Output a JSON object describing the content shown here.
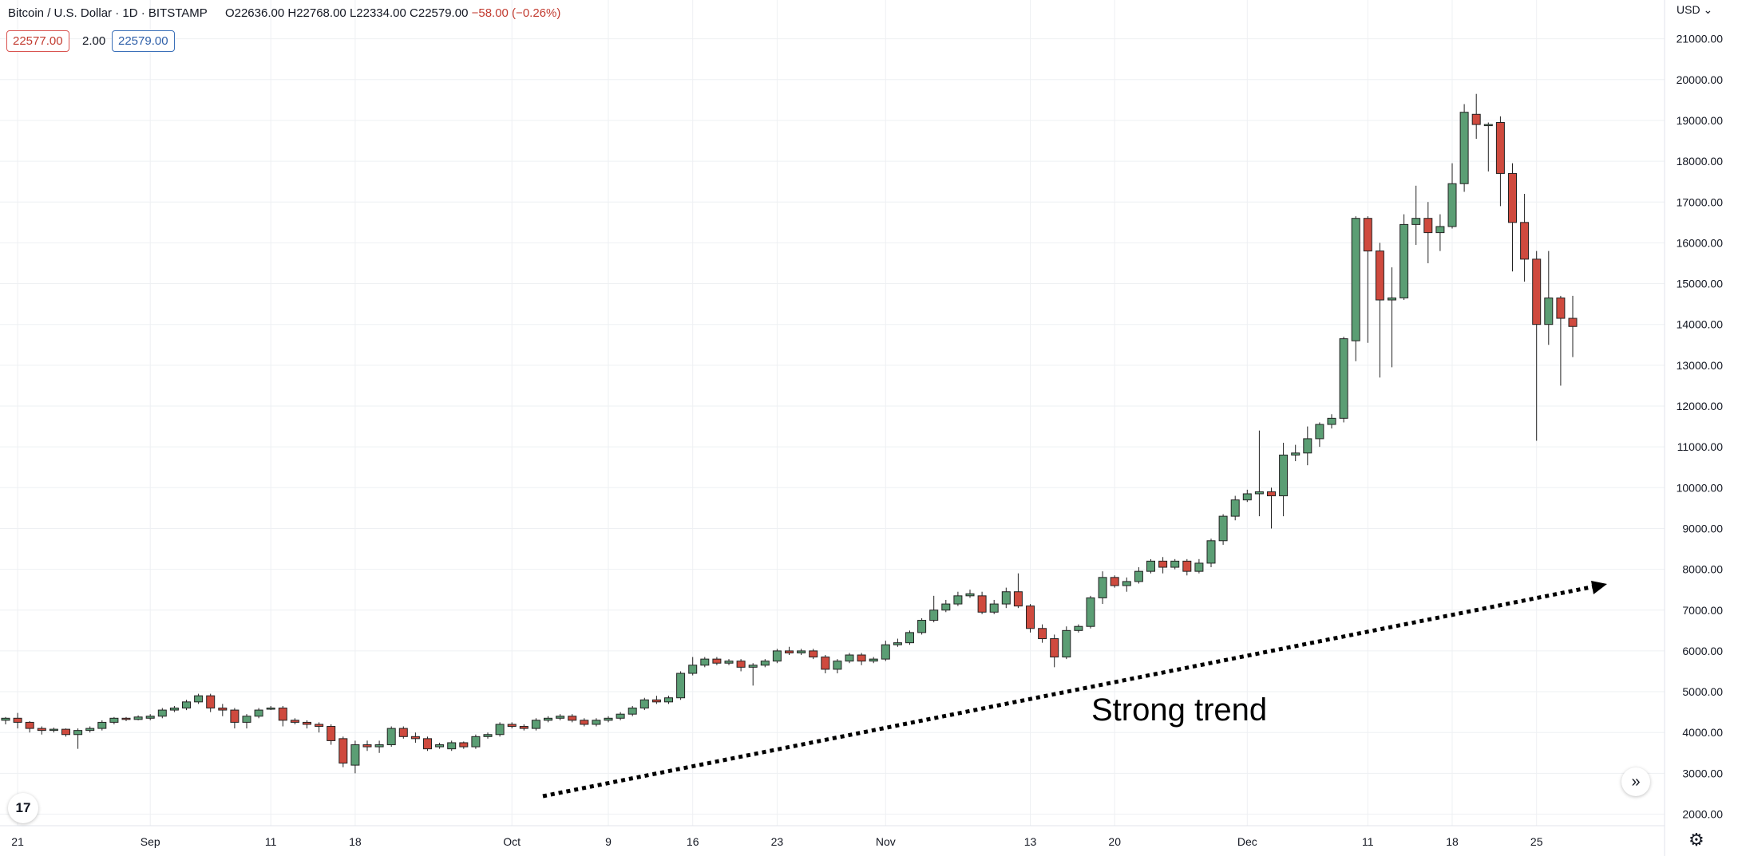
{
  "legend": {
    "symbol": "Bitcoin / U.S. Dollar · 1D · BITSTAMP",
    "open": "O22636.00",
    "high": "H22768.00",
    "low": "L22334.00",
    "close": "C22579.00",
    "change": "−58.00 (−0.26%)"
  },
  "quote": {
    "bid": "22577.00",
    "spread": "2.00",
    "ask": "22579.00"
  },
  "currency_label": "USD",
  "logo_text": "17",
  "annotation": "Strong trend",
  "colors": {
    "up": "#5b9e74",
    "down": "#cf4a3e",
    "grid": "#eef0f3",
    "text": "#131722"
  },
  "chart_data": {
    "type": "candlestick",
    "title": "Bitcoin / U.S. Dollar · 1D · BITSTAMP",
    "ylabel": "USD",
    "ylim": [
      1400,
      21300
    ],
    "y_ticks": [
      "2000.00",
      "3000.00",
      "4000.00",
      "5000.00",
      "6000.00",
      "7000.00",
      "8000.00",
      "9000.00",
      "10000.00",
      "11000.00",
      "12000.00",
      "13000.00",
      "14000.00",
      "15000.00",
      "16000.00",
      "17000.00",
      "18000.00",
      "19000.00",
      "20000.00",
      "21000.00"
    ],
    "x_ticks": [
      {
        "label": "21",
        "day": 1
      },
      {
        "label": "Sep",
        "day": 12
      },
      {
        "label": "11",
        "day": 22
      },
      {
        "label": "18",
        "day": 29
      },
      {
        "label": "Oct",
        "day": 42
      },
      {
        "label": "9",
        "day": 50
      },
      {
        "label": "16",
        "day": 57
      },
      {
        "label": "23",
        "day": 64
      },
      {
        "label": "Nov",
        "day": 73
      },
      {
        "label": "13",
        "day": 85
      },
      {
        "label": "20",
        "day": 92
      },
      {
        "label": "Dec",
        "day": 103
      },
      {
        "label": "11",
        "day": 113
      },
      {
        "label": "18",
        "day": 120
      },
      {
        "label": "25",
        "day": 127
      }
    ],
    "candles": [
      [
        4300,
        4350,
        4200,
        4380
      ],
      [
        4350,
        4250,
        4100,
        4480
      ],
      [
        4250,
        4100,
        4000,
        4280
      ],
      [
        4100,
        4050,
        3950,
        4150
      ],
      [
        4050,
        4080,
        4000,
        4120
      ],
      [
        4080,
        3950,
        3900,
        4100
      ],
      [
        3950,
        4050,
        3600,
        4100
      ],
      [
        4050,
        4100,
        4000,
        4150
      ],
      [
        4100,
        4250,
        4050,
        4300
      ],
      [
        4250,
        4350,
        4200,
        4380
      ],
      [
        4350,
        4320,
        4280,
        4380
      ],
      [
        4320,
        4380,
        4300,
        4420
      ],
      [
        4350,
        4400,
        4300,
        4450
      ],
      [
        4400,
        4550,
        4350,
        4600
      ],
      [
        4550,
        4600,
        4500,
        4650
      ],
      [
        4600,
        4750,
        4550,
        4800
      ],
      [
        4750,
        4900,
        4700,
        4950
      ],
      [
        4900,
        4600,
        4500,
        4950
      ],
      [
        4600,
        4550,
        4400,
        4700
      ],
      [
        4550,
        4250,
        4100,
        4600
      ],
      [
        4250,
        4400,
        4100,
        4450
      ],
      [
        4400,
        4550,
        4350,
        4600
      ],
      [
        4580,
        4600,
        4550,
        4650
      ],
      [
        4600,
        4300,
        4150,
        4650
      ],
      [
        4300,
        4250,
        4200,
        4350
      ],
      [
        4250,
        4200,
        4100,
        4300
      ],
      [
        4200,
        4150,
        4000,
        4250
      ],
      [
        4150,
        3800,
        3700,
        4200
      ],
      [
        3850,
        3250,
        3150,
        3900
      ],
      [
        3200,
        3700,
        3000,
        3800
      ],
      [
        3700,
        3650,
        3550,
        3800
      ],
      [
        3650,
        3700,
        3500,
        3800
      ],
      [
        3700,
        4100,
        3650,
        4150
      ],
      [
        4100,
        3900,
        3850,
        4150
      ],
      [
        3900,
        3850,
        3750,
        4000
      ],
      [
        3850,
        3600,
        3550,
        3900
      ],
      [
        3650,
        3700,
        3600,
        3750
      ],
      [
        3600,
        3750,
        3550,
        3800
      ],
      [
        3750,
        3650,
        3600,
        3780
      ],
      [
        3650,
        3900,
        3600,
        3950
      ],
      [
        3900,
        3950,
        3850,
        4000
      ],
      [
        3950,
        4200,
        3900,
        4250
      ],
      [
        4200,
        4150,
        4100,
        4250
      ],
      [
        4150,
        4100,
        4050,
        4200
      ],
      [
        4100,
        4300,
        4050,
        4350
      ],
      [
        4300,
        4350,
        4250,
        4400
      ],
      [
        4350,
        4400,
        4300,
        4450
      ],
      [
        4400,
        4300,
        4250,
        4450
      ],
      [
        4300,
        4200,
        4150,
        4350
      ],
      [
        4200,
        4300,
        4150,
        4350
      ],
      [
        4300,
        4350,
        4250,
        4400
      ],
      [
        4350,
        4450,
        4300,
        4500
      ],
      [
        4450,
        4600,
        4400,
        4650
      ],
      [
        4600,
        4800,
        4550,
        4850
      ],
      [
        4800,
        4750,
        4700,
        4900
      ],
      [
        4750,
        4850,
        4700,
        4900
      ],
      [
        4850,
        5450,
        4800,
        5500
      ],
      [
        5450,
        5650,
        5400,
        5850
      ],
      [
        5650,
        5800,
        5600,
        5850
      ],
      [
        5800,
        5700,
        5650,
        5850
      ],
      [
        5700,
        5750,
        5650,
        5800
      ],
      [
        5750,
        5600,
        5500,
        5800
      ],
      [
        5600,
        5650,
        5150,
        5700
      ],
      [
        5650,
        5750,
        5600,
        5800
      ],
      [
        5750,
        6000,
        5700,
        6050
      ],
      [
        6000,
        5950,
        5900,
        6100
      ],
      [
        5950,
        6000,
        5900,
        6050
      ],
      [
        6000,
        5850,
        5800,
        6050
      ],
      [
        5850,
        5550,
        5450,
        5900
      ],
      [
        5550,
        5750,
        5450,
        5800
      ],
      [
        5750,
        5900,
        5700,
        5950
      ],
      [
        5900,
        5750,
        5650,
        5950
      ],
      [
        5750,
        5800,
        5700,
        5850
      ],
      [
        5800,
        6150,
        5750,
        6250
      ],
      [
        6150,
        6200,
        6100,
        6300
      ],
      [
        6200,
        6450,
        6150,
        6500
      ],
      [
        6450,
        6750,
        6400,
        6800
      ],
      [
        6750,
        7000,
        6700,
        7350
      ],
      [
        7000,
        7150,
        6950,
        7250
      ],
      [
        7150,
        7350,
        7100,
        7450
      ],
      [
        7350,
        7400,
        7300,
        7500
      ],
      [
        7350,
        6950,
        6900,
        7450
      ],
      [
        6950,
        7150,
        6900,
        7250
      ],
      [
        7150,
        7450,
        7050,
        7550
      ],
      [
        7450,
        7100,
        7050,
        7900
      ],
      [
        7100,
        6550,
        6450,
        7150
      ],
      [
        6550,
        6300,
        6200,
        6650
      ],
      [
        6300,
        5850,
        5600,
        6400
      ],
      [
        5850,
        6500,
        5800,
        6600
      ],
      [
        6500,
        6600,
        6450,
        6650
      ],
      [
        6600,
        7300,
        6550,
        7350
      ],
      [
        7300,
        7800,
        7150,
        7950
      ],
      [
        7800,
        7600,
        7550,
        7850
      ],
      [
        7600,
        7700,
        7450,
        7800
      ],
      [
        7700,
        7950,
        7650,
        8050
      ],
      [
        7950,
        8200,
        7900,
        8250
      ],
      [
        8200,
        8050,
        7900,
        8300
      ],
      [
        8050,
        8200,
        8000,
        8250
      ],
      [
        8200,
        7950,
        7850,
        8250
      ],
      [
        7950,
        8150,
        7900,
        8250
      ],
      [
        8150,
        8700,
        8050,
        8750
      ],
      [
        8700,
        9300,
        8600,
        9350
      ],
      [
        9300,
        9700,
        9200,
        9800
      ],
      [
        9700,
        9850,
        9650,
        9950
      ],
      [
        9850,
        9900,
        9300,
        11400
      ],
      [
        9900,
        9800,
        9000,
        10000
      ],
      [
        9800,
        10800,
        9300,
        11100
      ],
      [
        10800,
        10850,
        10650,
        11050
      ],
      [
        10850,
        11200,
        10550,
        11500
      ],
      [
        11200,
        11550,
        11000,
        11600
      ],
      [
        11550,
        11700,
        11450,
        11800
      ],
      [
        11700,
        13650,
        11600,
        13700
      ],
      [
        13600,
        16600,
        13100,
        16650
      ],
      [
        16600,
        15800,
        13550,
        16650
      ],
      [
        15800,
        14600,
        12700,
        16000
      ],
      [
        14600,
        14650,
        12950,
        15400
      ],
      [
        14650,
        16450,
        14600,
        16700
      ],
      [
        16450,
        16600,
        15950,
        17400
      ],
      [
        16600,
        16250,
        15500,
        17000
      ],
      [
        16250,
        16400,
        15800,
        16700
      ],
      [
        16400,
        17450,
        16350,
        17950
      ],
      [
        17450,
        19200,
        17250,
        19400
      ],
      [
        19150,
        18900,
        18550,
        19650
      ],
      [
        18900,
        18900,
        17750,
        18950
      ],
      [
        18950,
        17700,
        16900,
        19100
      ],
      [
        17700,
        16500,
        15300,
        17950
      ],
      [
        16500,
        15600,
        15050,
        17200
      ],
      [
        15600,
        14000,
        11150,
        15800
      ],
      [
        14000,
        14650,
        13500,
        15800
      ],
      [
        14650,
        14150,
        12500,
        14700
      ],
      [
        14150,
        13950,
        13200,
        14700
      ]
    ]
  }
}
